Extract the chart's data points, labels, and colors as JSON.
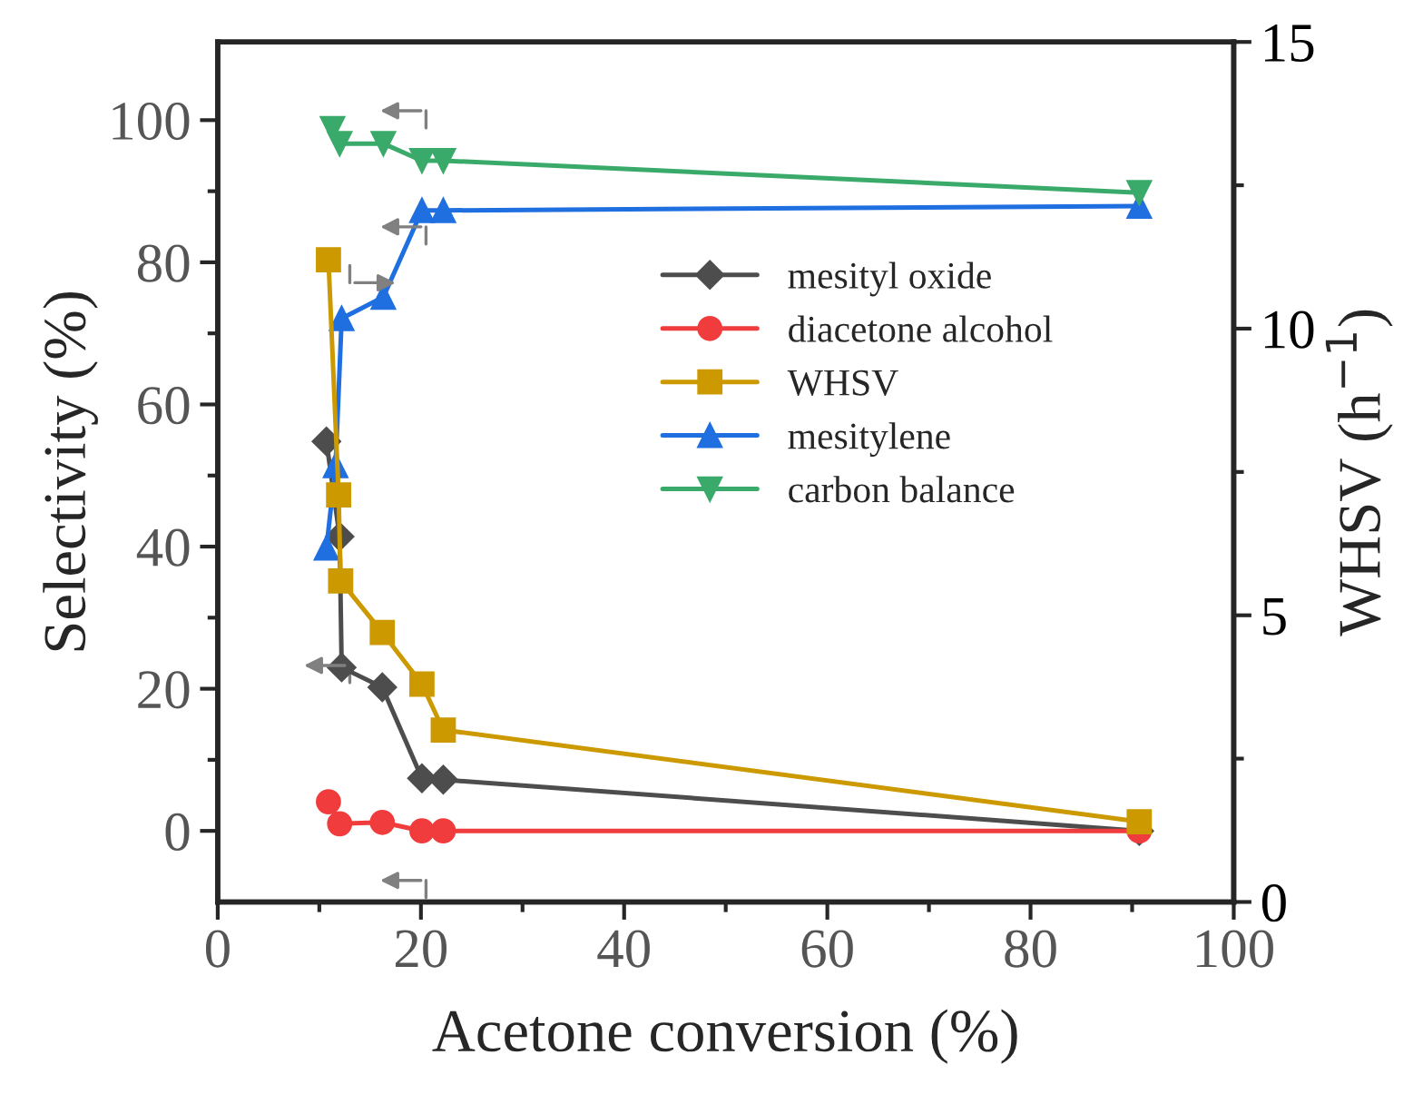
{
  "chart_data": {
    "type": "line",
    "xlabel": "Acetone conversion (%)",
    "ylabel": "Selectivity (%)",
    "y2label": "WHSV (h$^{−1}$)",
    "xlim": [
      0,
      100
    ],
    "xticks": [
      0,
      20,
      40,
      60,
      80,
      100
    ],
    "ylim": [
      -10,
      111
    ],
    "yticks": [
      0,
      20,
      40,
      60,
      80,
      100
    ],
    "y2lim": [
      0,
      15
    ],
    "y2ticks": [
      0,
      5,
      10,
      15
    ],
    "grid": false,
    "legend": "center",
    "line_style": "solid",
    "series": [
      {
        "name": "mesityl oxide",
        "color": "#4d4d4d",
        "marker": "diamond",
        "x": [
          10.7,
          12.0,
          12.2,
          16.2,
          20.1,
          22.2,
          90.7
        ],
        "values": [
          54.8,
          41.4,
          23.0,
          20.2,
          7.4,
          7.2,
          0
        ]
      },
      {
        "name": "diacetone alcohol",
        "color": "#f03c3c",
        "marker": "circle",
        "x": [
          10.9,
          12.0,
          16.2,
          20.1,
          22.2,
          90.7
        ],
        "values": [
          4.1,
          1.0,
          1.2,
          0,
          0,
          0
        ]
      },
      {
        "name": "WHSV",
        "color": "#cc9900",
        "marker": "square",
        "axis": "y2",
        "x": [
          10.9,
          11.9,
          12.1,
          16.2,
          20.1,
          22.2,
          90.7
        ],
        "values": [
          11.2,
          7.1,
          5.6,
          4.7,
          3.8,
          3.0,
          1.4
        ]
      },
      {
        "name": "mesitylene",
        "color": "#1f6fe0",
        "marker": "triangle",
        "x": [
          10.7,
          11.6,
          12.2,
          16.3,
          20.1,
          22.2,
          90.7
        ],
        "values": [
          39.8,
          51.4,
          72.1,
          75.1,
          87.3,
          87.3,
          87.9
        ]
      },
      {
        "name": "carbon balance",
        "color": "#3aaa6a",
        "marker": "triangle_down",
        "x": [
          11.3,
          12.0,
          16.3,
          20.1,
          22.2,
          90.7
        ],
        "values": [
          98.8,
          96.7,
          96.7,
          94.3,
          94.3,
          89.8
        ]
      }
    ]
  }
}
